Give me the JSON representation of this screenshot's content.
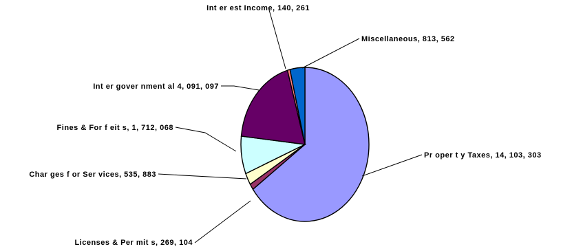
{
  "chart_data": {
    "type": "pie",
    "title": "",
    "start_angle_deg": 0,
    "direction": "clockwise",
    "legend": "none",
    "slices": [
      {
        "label": "Property Taxes",
        "value": 14103303,
        "value_text": "14,103,303",
        "text": "Pr oper t y Taxes, 14, 103, 303",
        "color": "#9999ff"
      },
      {
        "label": "Licenses & Permits",
        "value": 269104,
        "value_text": "269,104",
        "text": "Licenses & Per mit s, 269, 104",
        "color": "#993366"
      },
      {
        "label": "Charges for Services",
        "value": 535883,
        "value_text": "535,883",
        "text": "Char ges f or Ser vices, 535, 883",
        "color": "#ffffcc"
      },
      {
        "label": "Fines & Forfeits",
        "value": 1712068,
        "value_text": "1,712,068",
        "text": "Fines & For f eit s, 1, 712, 068",
        "color": "#ccffff"
      },
      {
        "label": "Intergovernmental",
        "value": 4091097,
        "value_text": "4,091,097",
        "text": "Int er gover nment al 4, 091, 097",
        "color": "#660066"
      },
      {
        "label": "Interest Income",
        "value": 140261,
        "value_text": "140,261",
        "text": "Int er est Income, 140, 261",
        "color": "#ff8080"
      },
      {
        "label": "Miscellaneous",
        "value": 813562,
        "value_text": "813,562",
        "text": "Miscellaneous, 813, 562",
        "color": "#0066cc"
      }
    ]
  }
}
